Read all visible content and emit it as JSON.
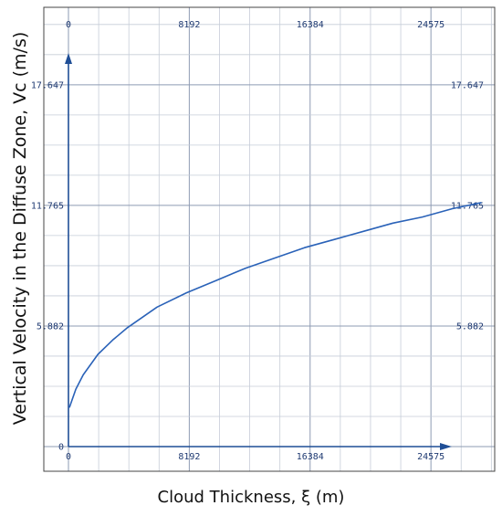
{
  "chart_data": {
    "type": "line",
    "title": "",
    "xlabel": "Cloud Thickness, ξ (m)",
    "ylabel": "Vertical Velocity in the Diffuse Zone, Vc (m/s)",
    "xlim": [
      0,
      32768
    ],
    "ylim": [
      0,
      20
    ],
    "x_ticks": [
      "0",
      "8192",
      "16384",
      "24575"
    ],
    "x_tick_values": [
      0,
      8192,
      16384,
      24575
    ],
    "y_ticks": [
      "0",
      "5.882",
      "11.765",
      "17.647"
    ],
    "y_tick_values": [
      0,
      5.882,
      11.765,
      17.647
    ],
    "grid": true,
    "series": [
      {
        "x": [
          60,
          500,
          1000,
          2000,
          3000,
          4000,
          6000,
          8000,
          10000,
          12000,
          14000,
          16000,
          18000,
          20000,
          22000,
          24000,
          26000,
          28000
        ],
        "y": [
          1.9,
          2.8,
          3.5,
          4.5,
          5.2,
          5.8,
          6.8,
          7.5,
          8.1,
          8.7,
          9.2,
          9.7,
          10.1,
          10.5,
          10.9,
          11.2,
          11.6,
          11.9
        ]
      }
    ],
    "colors": {
      "line": "#2a62b8",
      "axis": "#1f4e96",
      "grid": "#c6cdd8",
      "tick": "#1f3a72"
    }
  }
}
